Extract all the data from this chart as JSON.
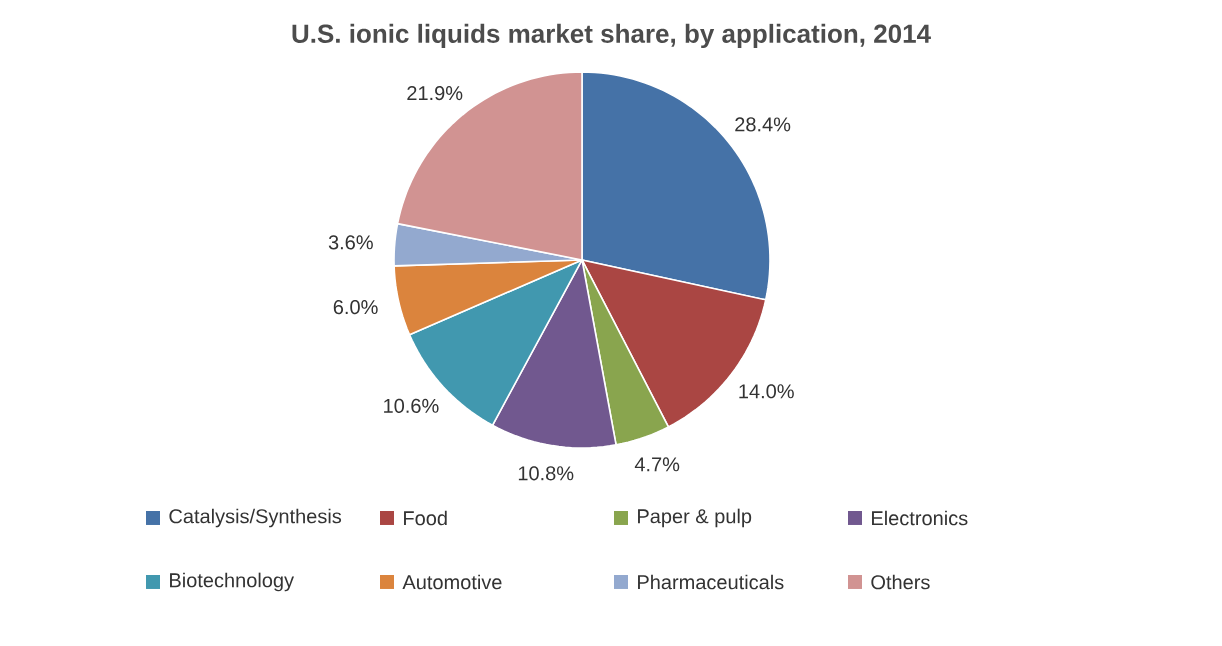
{
  "chart_data": {
    "type": "pie",
    "title": "U.S. ionic liquids market share, by application, 2014",
    "categories": [
      "Catalysis/Synthesis",
      "Food",
      "Paper & pulp",
      "Electronics",
      "Biotechnology",
      "Automotive",
      "Pharmaceuticals",
      "Others"
    ],
    "values": [
      28.4,
      14.0,
      4.7,
      10.8,
      10.6,
      6.0,
      3.6,
      21.9
    ],
    "value_labels": [
      "28.4%",
      "14.0%",
      "4.7%",
      "10.8%",
      "10.6%",
      "6.0%",
      "3.6%",
      "21.9%"
    ],
    "colors": [
      "#4572a7",
      "#aa4643",
      "#89a54e",
      "#71588f",
      "#4198af",
      "#db843d",
      "#93a9cf",
      "#d19392"
    ],
    "legend": "bottom"
  }
}
